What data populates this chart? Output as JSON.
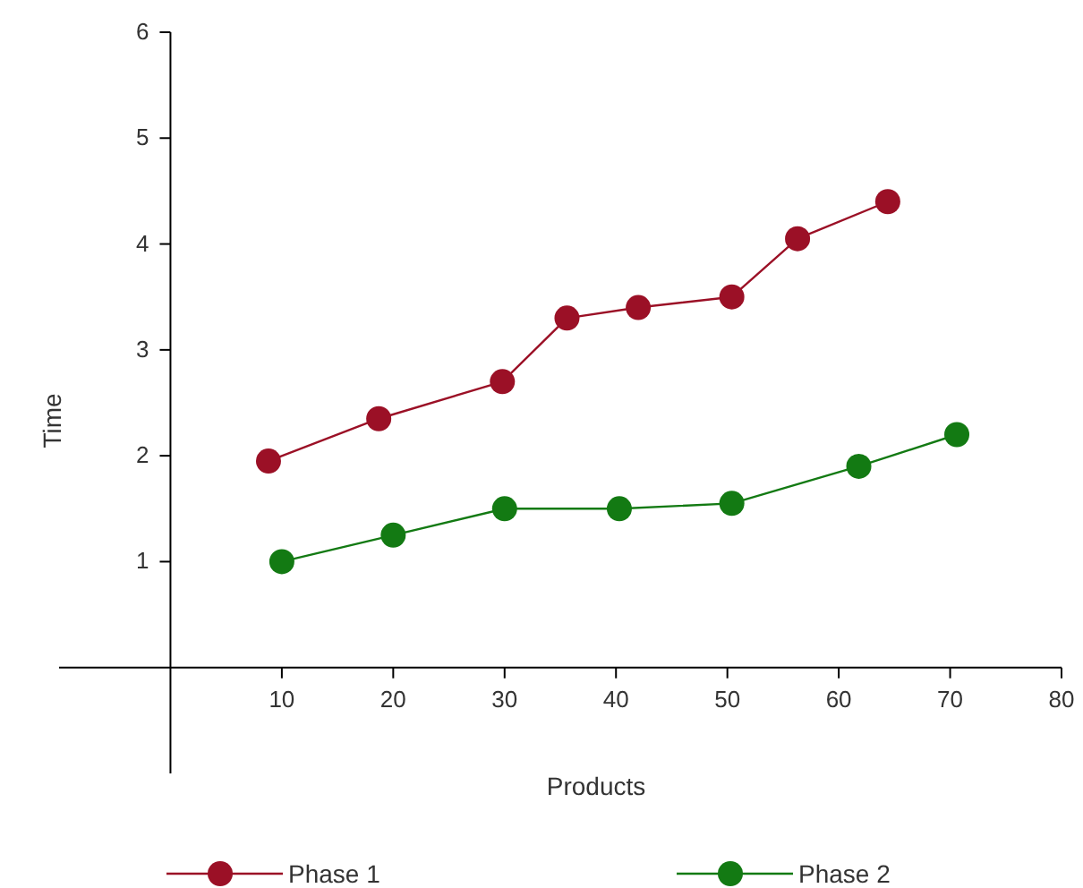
{
  "chart_data": {
    "type": "line",
    "xlabel": "Products",
    "ylabel": "Time",
    "xlim": [
      -10,
      80
    ],
    "ylim": [
      -1,
      6
    ],
    "xticks": [
      10,
      20,
      30,
      40,
      50,
      60,
      70,
      80
    ],
    "yticks": [
      1,
      2,
      3,
      4,
      5,
      6
    ],
    "grid": false,
    "legend": "bottom",
    "marker": "circle",
    "line_style": "solid",
    "series": [
      {
        "name": "Phase 1",
        "color": "#9b1026",
        "x": [
          8.8,
          18.7,
          29.8,
          35.6,
          42,
          50.4,
          56.3,
          64.4
        ],
        "values": [
          1.95,
          2.35,
          2.7,
          3.3,
          3.4,
          3.5,
          4.05,
          4.4
        ]
      },
      {
        "name": "Phase 2",
        "color": "#137a13",
        "x": [
          10,
          20,
          30,
          40.3,
          50.4,
          61.8,
          70.6
        ],
        "values": [
          1,
          1.25,
          1.5,
          1.5,
          1.55,
          1.9,
          2.2
        ]
      }
    ]
  }
}
